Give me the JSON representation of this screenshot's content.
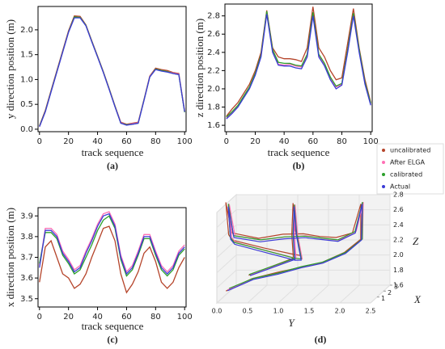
{
  "chart_data": [
    {
      "type": "line",
      "xlabel": "track sequence",
      "ylabel": "y direction position (m)",
      "caption": "(a)",
      "x": [
        0,
        4,
        8,
        12,
        16,
        20,
        24,
        28,
        32,
        36,
        40,
        44,
        48,
        52,
        56,
        60,
        64,
        68,
        72,
        76,
        80,
        84,
        88,
        92,
        96,
        100
      ],
      "series": [
        {
          "color": "#b5442a",
          "values": [
            0.07,
            0.38,
            0.78,
            1.18,
            1.58,
            1.98,
            2.28,
            2.27,
            2.1,
            1.78,
            1.47,
            1.16,
            0.82,
            0.47,
            0.14,
            0.1,
            0.12,
            0.14,
            0.6,
            1.07,
            1.23,
            1.2,
            1.18,
            1.14,
            1.12,
            0.36
          ]
        },
        {
          "color": "#ff6fb5",
          "values": [
            0.05,
            0.36,
            0.76,
            1.16,
            1.56,
            1.96,
            2.25,
            2.25,
            2.09,
            1.77,
            1.46,
            1.15,
            0.81,
            0.46,
            0.13,
            0.09,
            0.11,
            0.13,
            0.59,
            1.06,
            1.21,
            1.18,
            1.16,
            1.13,
            1.11,
            0.35
          ]
        },
        {
          "color": "#2ca02c",
          "values": [
            0.06,
            0.36,
            0.76,
            1.16,
            1.56,
            1.96,
            2.26,
            2.25,
            2.09,
            1.77,
            1.46,
            1.15,
            0.81,
            0.46,
            0.12,
            0.09,
            0.1,
            0.12,
            0.59,
            1.05,
            1.21,
            1.18,
            1.16,
            1.12,
            1.1,
            0.34
          ]
        },
        {
          "color": "#3b3bd6",
          "values": [
            0.05,
            0.35,
            0.75,
            1.15,
            1.55,
            1.95,
            2.24,
            2.24,
            2.08,
            1.76,
            1.45,
            1.14,
            0.8,
            0.45,
            0.12,
            0.08,
            0.1,
            0.12,
            0.58,
            1.05,
            1.2,
            1.17,
            1.15,
            1.12,
            1.1,
            0.35
          ]
        }
      ],
      "xlim": [
        -1,
        101
      ],
      "ylim": [
        -0.05,
        2.47
      ],
      "xticks": [
        0,
        20,
        40,
        60,
        80,
        100
      ],
      "yticks": [
        {
          "value": 0,
          "label": "0.0"
        },
        {
          "value": 0.5,
          "label": "0.5"
        },
        {
          "value": 1,
          "label": "1.0"
        },
        {
          "value": 1.5,
          "label": "1.5"
        },
        {
          "value": 2,
          "label": "2.0"
        }
      ]
    },
    {
      "type": "line",
      "xlabel": "track sequence",
      "ylabel": "z direction position (m)",
      "caption": "(b)",
      "x": [
        0,
        4,
        8,
        12,
        16,
        20,
        24,
        28,
        32,
        36,
        40,
        44,
        48,
        52,
        56,
        60,
        64,
        68,
        72,
        76,
        80,
        84,
        88,
        92,
        96,
        100
      ],
      "series": [
        {
          "name": "uncalibrated",
          "color": "#b5442a",
          "values": [
            1.7,
            1.78,
            1.85,
            1.95,
            2.05,
            2.2,
            2.4,
            2.86,
            2.45,
            2.35,
            2.33,
            2.33,
            2.32,
            2.3,
            2.45,
            2.9,
            2.45,
            2.35,
            2.2,
            2.1,
            2.12,
            2.5,
            2.88,
            2.45,
            2.1,
            1.85
          ]
        },
        {
          "name": "After ELGA",
          "color": "#ff6fb5",
          "values": [
            1.68,
            1.74,
            1.81,
            1.91,
            2.01,
            2.16,
            2.36,
            2.84,
            2.42,
            2.27,
            2.26,
            2.27,
            2.25,
            2.24,
            2.37,
            2.83,
            2.37,
            2.27,
            2.12,
            2.02,
            2.05,
            2.42,
            2.82,
            2.42,
            2.06,
            1.83
          ]
        },
        {
          "name": "calibrated",
          "color": "#2ca02c",
          "values": [
            1.69,
            1.75,
            1.82,
            1.92,
            2.02,
            2.17,
            2.37,
            2.85,
            2.43,
            2.29,
            2.28,
            2.28,
            2.26,
            2.25,
            2.38,
            2.84,
            2.38,
            2.28,
            2.13,
            2.03,
            2.06,
            2.43,
            2.83,
            2.43,
            2.07,
            1.84
          ]
        },
        {
          "name": "Actual",
          "color": "#3b3bd6",
          "values": [
            1.67,
            1.73,
            1.8,
            1.9,
            2.0,
            2.15,
            2.35,
            2.82,
            2.4,
            2.26,
            2.25,
            2.25,
            2.23,
            2.22,
            2.35,
            2.8,
            2.35,
            2.25,
            2.1,
            2.0,
            2.04,
            2.4,
            2.8,
            2.4,
            2.05,
            1.82
          ]
        }
      ],
      "xlim": [
        -1,
        101
      ],
      "ylim": [
        1.53,
        2.93
      ],
      "xticks": [
        0,
        20,
        40,
        60,
        80,
        100
      ],
      "yticks": [
        1.6,
        1.8,
        {
          "value": 2,
          "label": "2.0"
        },
        2.2,
        2.4,
        2.6,
        2.8
      ]
    },
    {
      "type": "line",
      "xlabel": "track sequence",
      "ylabel": "x direction position (m)",
      "caption": "(c)",
      "x": [
        0,
        4,
        8,
        12,
        16,
        20,
        24,
        28,
        32,
        36,
        40,
        44,
        48,
        52,
        56,
        60,
        64,
        68,
        72,
        76,
        80,
        84,
        88,
        92,
        96,
        100
      ],
      "series": [
        {
          "color": "#b5442a",
          "values": [
            3.58,
            3.75,
            3.78,
            3.7,
            3.62,
            3.6,
            3.55,
            3.57,
            3.62,
            3.7,
            3.77,
            3.84,
            3.85,
            3.78,
            3.62,
            3.53,
            3.57,
            3.63,
            3.72,
            3.75,
            3.68,
            3.58,
            3.55,
            3.58,
            3.65,
            3.7
          ]
        },
        {
          "color": "#ff6fb5",
          "values": [
            3.66,
            3.84,
            3.84,
            3.81,
            3.73,
            3.69,
            3.64,
            3.66,
            3.73,
            3.79,
            3.86,
            3.91,
            3.92,
            3.86,
            3.71,
            3.63,
            3.66,
            3.73,
            3.81,
            3.81,
            3.73,
            3.66,
            3.63,
            3.66,
            3.73,
            3.76
          ]
        },
        {
          "color": "#2ca02c",
          "values": [
            3.67,
            3.82,
            3.82,
            3.79,
            3.71,
            3.67,
            3.62,
            3.64,
            3.7,
            3.76,
            3.83,
            3.88,
            3.9,
            3.84,
            3.69,
            3.61,
            3.64,
            3.71,
            3.79,
            3.79,
            3.71,
            3.64,
            3.61,
            3.64,
            3.71,
            3.74
          ]
        },
        {
          "color": "#3b3bd6",
          "values": [
            3.65,
            3.83,
            3.83,
            3.8,
            3.72,
            3.68,
            3.63,
            3.65,
            3.72,
            3.78,
            3.85,
            3.9,
            3.91,
            3.85,
            3.7,
            3.62,
            3.65,
            3.72,
            3.8,
            3.8,
            3.72,
            3.65,
            3.62,
            3.65,
            3.72,
            3.75
          ]
        }
      ],
      "xlim": [
        -1,
        101
      ],
      "ylim": [
        3.46,
        3.94
      ],
      "xticks": [
        0,
        20,
        40,
        60,
        80,
        100
      ],
      "yticks": [
        3.5,
        3.6,
        3.7,
        3.8,
        3.9
      ]
    },
    {
      "type": "line3d",
      "caption": "(d)",
      "xlabel": "X",
      "ylabel": "Y",
      "zlabel": "Z",
      "ylim": [
        0,
        2.5
      ],
      "yticks": [
        {
          "value": 0,
          "label": "0.0"
        },
        {
          "value": 0.5,
          "label": "0.5"
        },
        {
          "value": 1,
          "label": "1.0"
        },
        {
          "value": 1.5,
          "label": "1.5"
        },
        {
          "value": 2,
          "label": "2.0"
        },
        {
          "value": 2.5,
          "label": "2.5"
        }
      ],
      "xlim": [
        0,
        3
      ],
      "xticks": [
        1,
        2,
        3
      ],
      "zlim": [
        1.6,
        2.8
      ],
      "zticks": [
        1.6,
        1.8,
        {
          "value": 2,
          "label": "2.0"
        },
        2.2,
        2.4,
        2.6,
        2.8
      ]
    }
  ]
}
